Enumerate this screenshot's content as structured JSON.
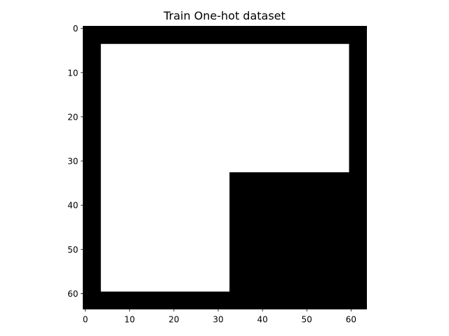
{
  "chart_data": {
    "type": "heatmap",
    "title": "Train One-hot dataset",
    "xlabel": "",
    "ylabel": "",
    "shape": [
      64,
      64
    ],
    "colormap": "gray",
    "values_range": [
      0,
      1
    ],
    "xlim": [
      -0.5,
      63.5
    ],
    "ylim": [
      63.5,
      -0.5
    ],
    "y_inverted": true,
    "grid": false,
    "x_ticks": [
      0,
      10,
      20,
      30,
      40,
      50,
      60
    ],
    "y_ticks": [
      0,
      10,
      20,
      30,
      40,
      50,
      60
    ],
    "x_tick_labels": [
      "0",
      "10",
      "20",
      "30",
      "40",
      "50",
      "60"
    ],
    "y_tick_labels": [
      "0",
      "10",
      "20",
      "30",
      "40",
      "50",
      "60"
    ],
    "background_value": 0,
    "regions": [
      {
        "value": 1,
        "rows": [
          4,
          32
        ],
        "cols": [
          4,
          59
        ]
      },
      {
        "value": 1,
        "rows": [
          33,
          59
        ],
        "cols": [
          4,
          32
        ]
      }
    ],
    "colors": {
      "value_0": "#000000",
      "value_1": "#ffffff"
    }
  }
}
